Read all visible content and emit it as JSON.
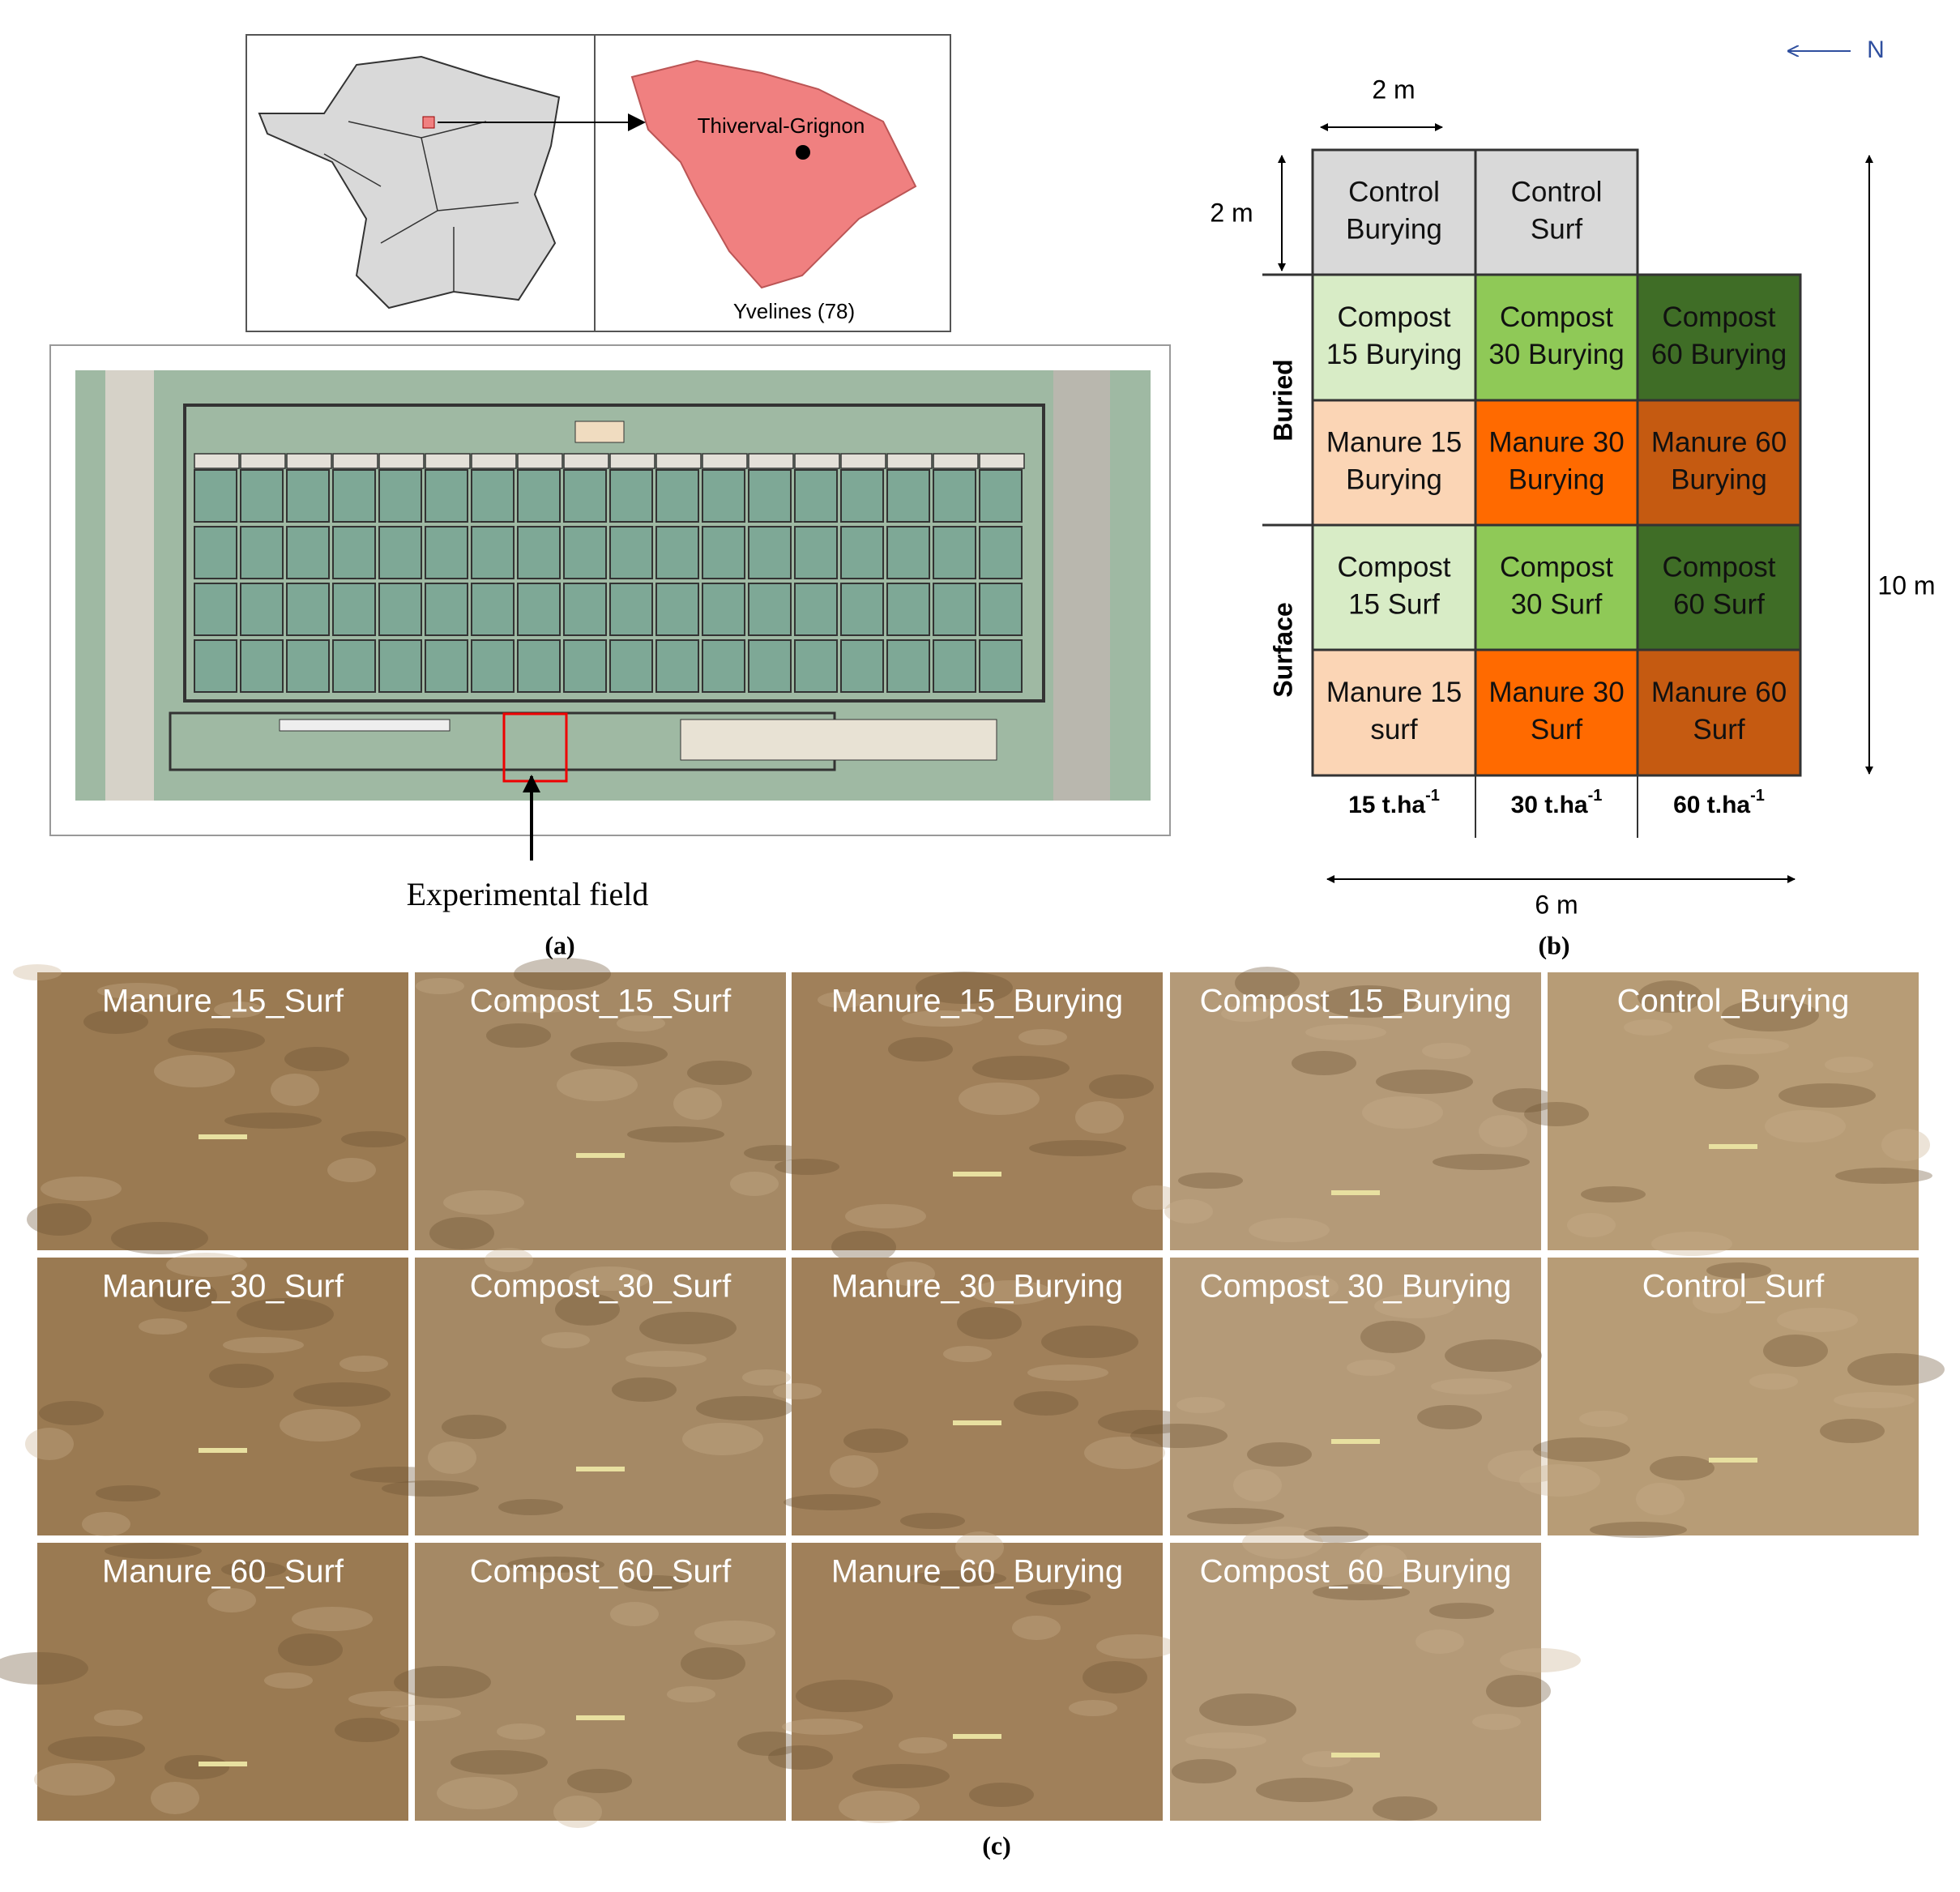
{
  "panel_a": {
    "locality": "Thiverval-Grignon",
    "department": "Yvelines (78)",
    "callout": "Experimental field",
    "label": "(a)"
  },
  "panel_b": {
    "north": "N",
    "cell_width": "2 m",
    "cell_height": "2 m",
    "total_height": "10 m",
    "total_width": "6 m",
    "groups": [
      "Buried",
      "Surface"
    ],
    "grid": [
      [
        {
          "lines": [
            "Control",
            "Burying"
          ]
        },
        {
          "lines": [
            "Control",
            "Surf"
          ]
        }
      ],
      [
        {
          "lines": [
            "Compost",
            "15 Burying"
          ]
        },
        {
          "lines": [
            "Compost",
            "30 Burying"
          ]
        },
        {
          "lines": [
            "Compost",
            "60 Burying"
          ]
        }
      ],
      [
        {
          "lines": [
            "Manure 15",
            "Burying"
          ]
        },
        {
          "lines": [
            "Manure 30",
            "Burying"
          ]
        },
        {
          "lines": [
            "Manure 60",
            "Burying"
          ]
        }
      ],
      [
        {
          "lines": [
            "Compost",
            "15 Surf"
          ]
        },
        {
          "lines": [
            "Compost",
            "30 Surf"
          ]
        },
        {
          "lines": [
            "Compost",
            "60 Surf"
          ]
        }
      ],
      [
        {
          "lines": [
            "Manure 15",
            "surf"
          ]
        },
        {
          "lines": [
            "Manure 30",
            "Surf"
          ]
        },
        {
          "lines": [
            "Manure 60",
            "Surf"
          ]
        }
      ]
    ],
    "columns": [
      {
        "base": "15 t.ha",
        "sup": "-1"
      },
      {
        "base": "30 t.ha",
        "sup": "-1"
      },
      {
        "base": "60 t.ha",
        "sup": "-1"
      }
    ],
    "label": "(b)"
  },
  "panel_c": {
    "photos": [
      "Manure_15_Surf",
      "Compost_15_Surf",
      "Manure_15_Burying",
      "Compost_15_Burying",
      "Control_Burying",
      "Manure_30_Surf",
      "Compost_30_Surf",
      "Manure_30_Burying",
      "Compost_30_Burying",
      "Control_Surf",
      "Manure_60_Surf",
      "Compost_60_Surf",
      "Manure_60_Burying",
      "Compost_60_Burying"
    ],
    "label": "(c)"
  }
}
